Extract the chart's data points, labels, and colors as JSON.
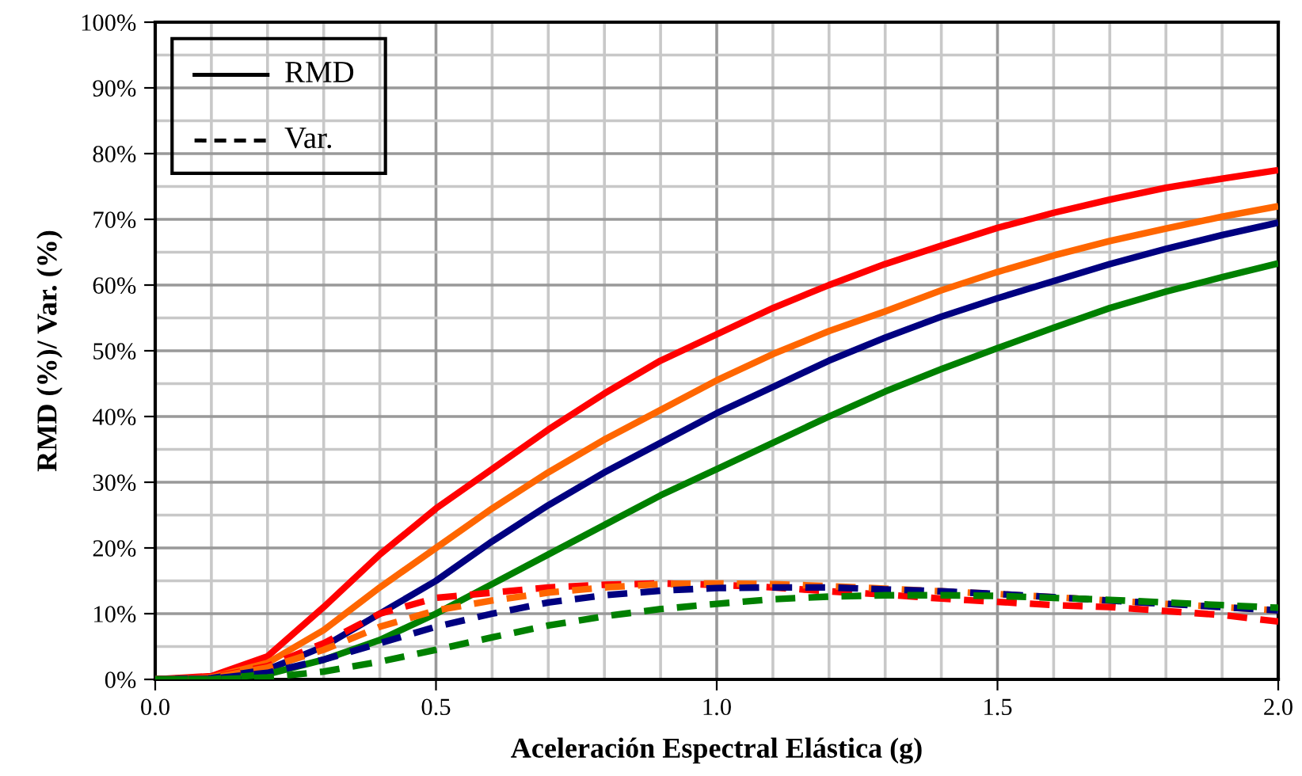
{
  "chart_data": {
    "type": "line",
    "xlabel": "Aceleración Espectral Elástica (g)",
    "ylabel": "RMD (%)/ Var. (%)",
    "x": [
      0,
      0.1,
      0.2,
      0.3,
      0.4,
      0.5,
      0.6,
      0.7,
      0.8,
      0.9,
      1.0,
      1.1,
      1.2,
      1.3,
      1.4,
      1.5,
      1.6,
      1.7,
      1.8,
      1.9,
      2.0
    ],
    "series": [
      {
        "color": "#ff0000",
        "line_style": "solid",
        "values": [
          0,
          0.5,
          3.5,
          11,
          19,
          26,
          32,
          38,
          43.5,
          48.5,
          52.5,
          56.5,
          60,
          63.2,
          66,
          68.7,
          71,
          73,
          74.8,
          76.2,
          77.5
        ]
      },
      {
        "color": "#ff6600",
        "line_style": "solid",
        "values": [
          0,
          0.3,
          2.5,
          7.5,
          14,
          20,
          26,
          31.5,
          36.5,
          41,
          45.5,
          49.5,
          53,
          56,
          59.2,
          62,
          64.5,
          66.7,
          68.6,
          70.4,
          72
        ]
      },
      {
        "color": "#000080",
        "line_style": "solid",
        "values": [
          0,
          0.2,
          1.5,
          5,
          10,
          15,
          21,
          26.5,
          31.5,
          36,
          40.5,
          44.5,
          48.5,
          52,
          55.2,
          58,
          60.6,
          63.2,
          65.5,
          67.6,
          69.5
        ]
      },
      {
        "color": "#008000",
        "line_style": "solid",
        "values": [
          0,
          0,
          0.8,
          3,
          6,
          10,
          14.5,
          19,
          23.5,
          28,
          32,
          36,
          40,
          43.8,
          47.2,
          50.4,
          53.5,
          56.5,
          59,
          61.2,
          63.3
        ]
      },
      {
        "color": "#ff0000",
        "line_style": "dashed",
        "values": [
          0,
          0.3,
          2,
          5.5,
          10,
          12.4,
          13.2,
          14,
          14.4,
          14.6,
          14.4,
          14,
          13.4,
          12.9,
          12.3,
          11.8,
          11.3,
          11,
          10.4,
          9.8,
          8.8
        ]
      },
      {
        "color": "#ff6600",
        "line_style": "dashed",
        "values": [
          0,
          0.2,
          1.8,
          4.5,
          8,
          10.5,
          12,
          13.2,
          14,
          14.5,
          14.6,
          14.5,
          14.2,
          13.8,
          13.4,
          13,
          12.5,
          12,
          11.5,
          11,
          10.5
        ]
      },
      {
        "color": "#000080",
        "line_style": "dashed",
        "values": [
          0,
          0.1,
          1,
          3,
          5.5,
          8,
          10,
          11.7,
          12.8,
          13.5,
          13.9,
          14,
          14,
          13.7,
          13.4,
          13,
          12.5,
          12,
          11.5,
          11,
          10.5
        ]
      },
      {
        "color": "#008000",
        "line_style": "dashed",
        "values": [
          0,
          0,
          0.3,
          1.2,
          2.7,
          4.5,
          6.4,
          8.2,
          9.6,
          10.7,
          11.5,
          12.2,
          12.6,
          12.8,
          12.8,
          12.7,
          12.4,
          12.1,
          11.7,
          11.3,
          10.9
        ]
      }
    ],
    "annotations": [
      "RMD",
      "Var."
    ],
    "xlim": [
      0,
      2.0
    ],
    "xticks": [
      {
        "value": 0,
        "label": "0.0"
      },
      {
        "value": 0.5,
        "label": "0.5"
      },
      {
        "value": 1.0,
        "label": "1.0"
      },
      {
        "value": 1.5,
        "label": "1.5"
      },
      {
        "value": 2.0,
        "label": "2.0"
      }
    ],
    "ylim": [
      0,
      100
    ],
    "yticks": [
      {
        "value": 0,
        "label": "0%"
      },
      {
        "value": 10,
        "label": "10%"
      },
      {
        "value": 20,
        "label": "20%"
      },
      {
        "value": 30,
        "label": "30%"
      },
      {
        "value": 40,
        "label": "40%"
      },
      {
        "value": 50,
        "label": "50%"
      },
      {
        "value": 60,
        "label": "60%"
      },
      {
        "value": 70,
        "label": "70%"
      },
      {
        "value": 80,
        "label": "80%"
      },
      {
        "value": 90,
        "label": "90%"
      },
      {
        "value": 100,
        "label": "100%"
      }
    ],
    "grid": true,
    "marker": "none"
  }
}
